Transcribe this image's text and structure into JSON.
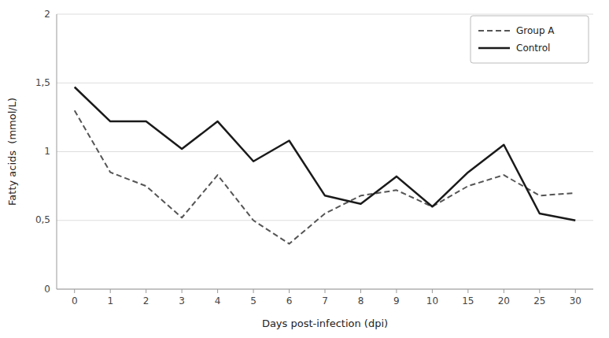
{
  "chart_data": {
    "type": "line",
    "xlabel": "Days post-infection (dpi)",
    "ylabel": "Fatty acids  (mmol/L)",
    "categories": [
      "0",
      "1",
      "2",
      "3",
      "4",
      "5",
      "6",
      "7",
      "8",
      "9",
      "10",
      "15",
      "20",
      "25",
      "30"
    ],
    "series": [
      {
        "name": "Group A",
        "color": "#555555",
        "line_style": "dashed",
        "values": [
          1.3,
          0.85,
          0.75,
          0.52,
          0.83,
          0.5,
          0.33,
          0.55,
          0.68,
          0.72,
          0.6,
          0.75,
          0.83,
          0.68,
          0.7
        ]
      },
      {
        "name": "Control",
        "color": "#1a1a1a",
        "line_style": "solid",
        "values": [
          1.47,
          1.22,
          1.22,
          1.02,
          1.22,
          0.93,
          1.08,
          0.68,
          0.62,
          0.82,
          0.6,
          0.85,
          1.05,
          0.55,
          0.5
        ]
      }
    ],
    "ylim": [
      0,
      2.0
    ],
    "yticks": [
      0,
      {
        "value": 0.5,
        "label": "0,5"
      },
      1,
      {
        "value": 1.5,
        "label": "1,5"
      },
      2
    ],
    "grid": true,
    "legend": "upper right"
  }
}
